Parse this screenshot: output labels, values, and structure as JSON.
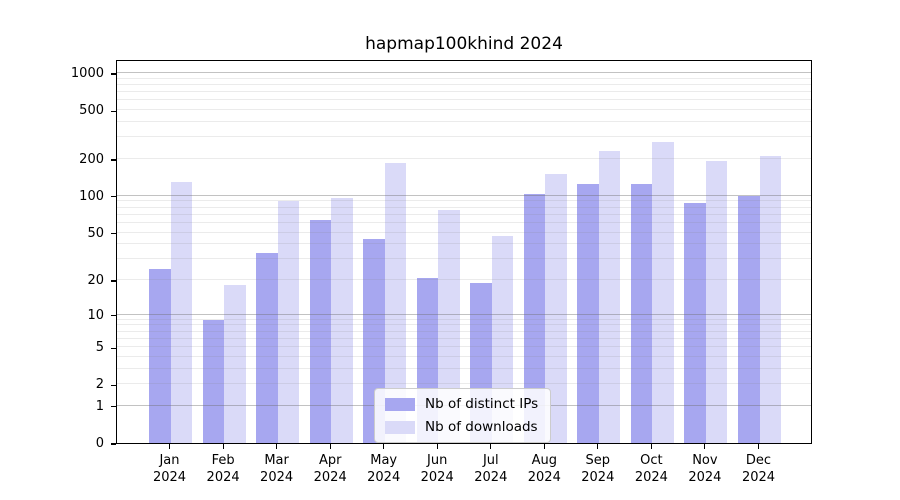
{
  "chart_data": {
    "type": "bar",
    "title": "hapmap100khind 2024",
    "categories": [
      "Jan",
      "Feb",
      "Mar",
      "Apr",
      "May",
      "Jun",
      "Jul",
      "Aug",
      "Sep",
      "Oct",
      "Nov",
      "Dec"
    ],
    "category_year": "2024",
    "series": [
      {
        "name": "Nb of distinct IPs",
        "color": "#a7a7f0",
        "values": [
          25,
          9,
          34,
          63,
          44,
          21,
          19,
          104,
          126,
          125,
          88,
          100
        ]
      },
      {
        "name": "Nb of downloads",
        "color": "#dadaf8",
        "values": [
          131,
          18,
          90,
          97,
          186,
          76,
          47,
          152,
          231,
          277,
          194,
          213
        ]
      }
    ],
    "xlabel": "",
    "ylabel": "",
    "yscale": "log10(1+x)",
    "yticks": [
      0,
      1,
      2,
      5,
      10,
      20,
      50,
      100,
      200,
      500,
      1000
    ],
    "ylim": [
      0,
      1300
    ],
    "grid": "both",
    "legend_position": "lower-center"
  }
}
